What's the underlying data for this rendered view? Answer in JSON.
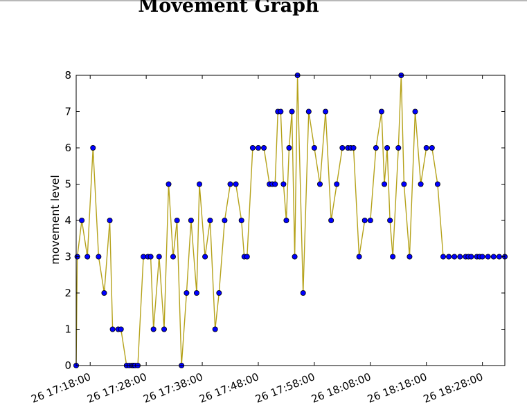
{
  "title": "Movement Graph",
  "chart_data": {
    "type": "line",
    "title": "Movement Graph",
    "xlabel": "",
    "ylabel": "movement level",
    "ylim": [
      0,
      8
    ],
    "yticks": [
      0,
      1,
      2,
      3,
      4,
      5,
      6,
      7,
      8
    ],
    "xtick_labels": [
      "26 17:18:00",
      "26 17:28:00",
      "26 17:38:00",
      "26 17:48:00",
      "26 17:58:00",
      "26 18:08:00",
      "26 18:18:00",
      "26 18:28:00"
    ],
    "xtick_minutes": [
      10,
      20,
      30,
      40,
      50,
      60,
      70,
      80
    ],
    "xlim_minutes": [
      7.5,
      84
    ],
    "line_color": "#b5a21a",
    "marker_color": "#0000ff",
    "grid": false,
    "series": [
      {
        "x_minutes": [
          7.5,
          7.7,
          8.5,
          9.5,
          10.5,
          11.5,
          12.5,
          13.5,
          14.0,
          15.0,
          15.5,
          16.5,
          17.0,
          17.5,
          17.7,
          18.0,
          18.5,
          19.5,
          20.3,
          20.8,
          21.3,
          22.3,
          23.2,
          24.0,
          24.8,
          25.5,
          26.3,
          27.2,
          28.0,
          29.0,
          29.5,
          30.5,
          31.4,
          32.3,
          33.0,
          34.0,
          35.0,
          36.0,
          37.0,
          37.5,
          38.0,
          39.0,
          40.0,
          41.0,
          42.0,
          42.5,
          43.0,
          43.5,
          44.0,
          44.5,
          45.0,
          45.5,
          46.0,
          46.5,
          47.0,
          48.0,
          49.0,
          50.0,
          51.0,
          52.0,
          53.0,
          54.0,
          55.0,
          56.0,
          56.5,
          57.0,
          58.0,
          59.0,
          60.0,
          61.0,
          62.0,
          62.5,
          63.0,
          63.5,
          64.0,
          65.0,
          65.5,
          66.0,
          67.0,
          68.0,
          69.0,
          70.0,
          71.0,
          72.0,
          73.0,
          74.0,
          75.0,
          76.0,
          77.0,
          77.5,
          78.0,
          79.0,
          79.5,
          80.0,
          81.0,
          82.0,
          83.0,
          84.0
        ],
        "values": [
          0,
          3,
          4,
          3,
          6,
          3,
          2,
          4,
          1,
          1,
          1,
          0,
          0,
          0,
          0,
          0,
          0,
          3,
          3,
          3,
          1,
          3,
          1,
          5,
          3,
          4,
          0,
          2,
          4,
          2,
          5,
          3,
          4,
          1,
          2,
          4,
          5,
          5,
          4,
          3,
          3,
          6,
          6,
          6,
          5,
          5,
          5,
          7,
          7,
          5,
          4,
          6,
          7,
          3,
          8,
          2,
          7,
          6,
          5,
          7,
          4,
          5,
          6,
          6,
          6,
          6,
          3,
          4,
          4,
          6,
          7,
          5,
          6,
          4,
          3,
          6,
          8,
          5,
          3,
          7,
          5,
          6,
          6,
          5,
          3,
          3,
          3,
          3,
          3,
          3,
          3,
          3,
          3,
          3,
          3,
          3,
          3,
          3
        ]
      }
    ]
  }
}
